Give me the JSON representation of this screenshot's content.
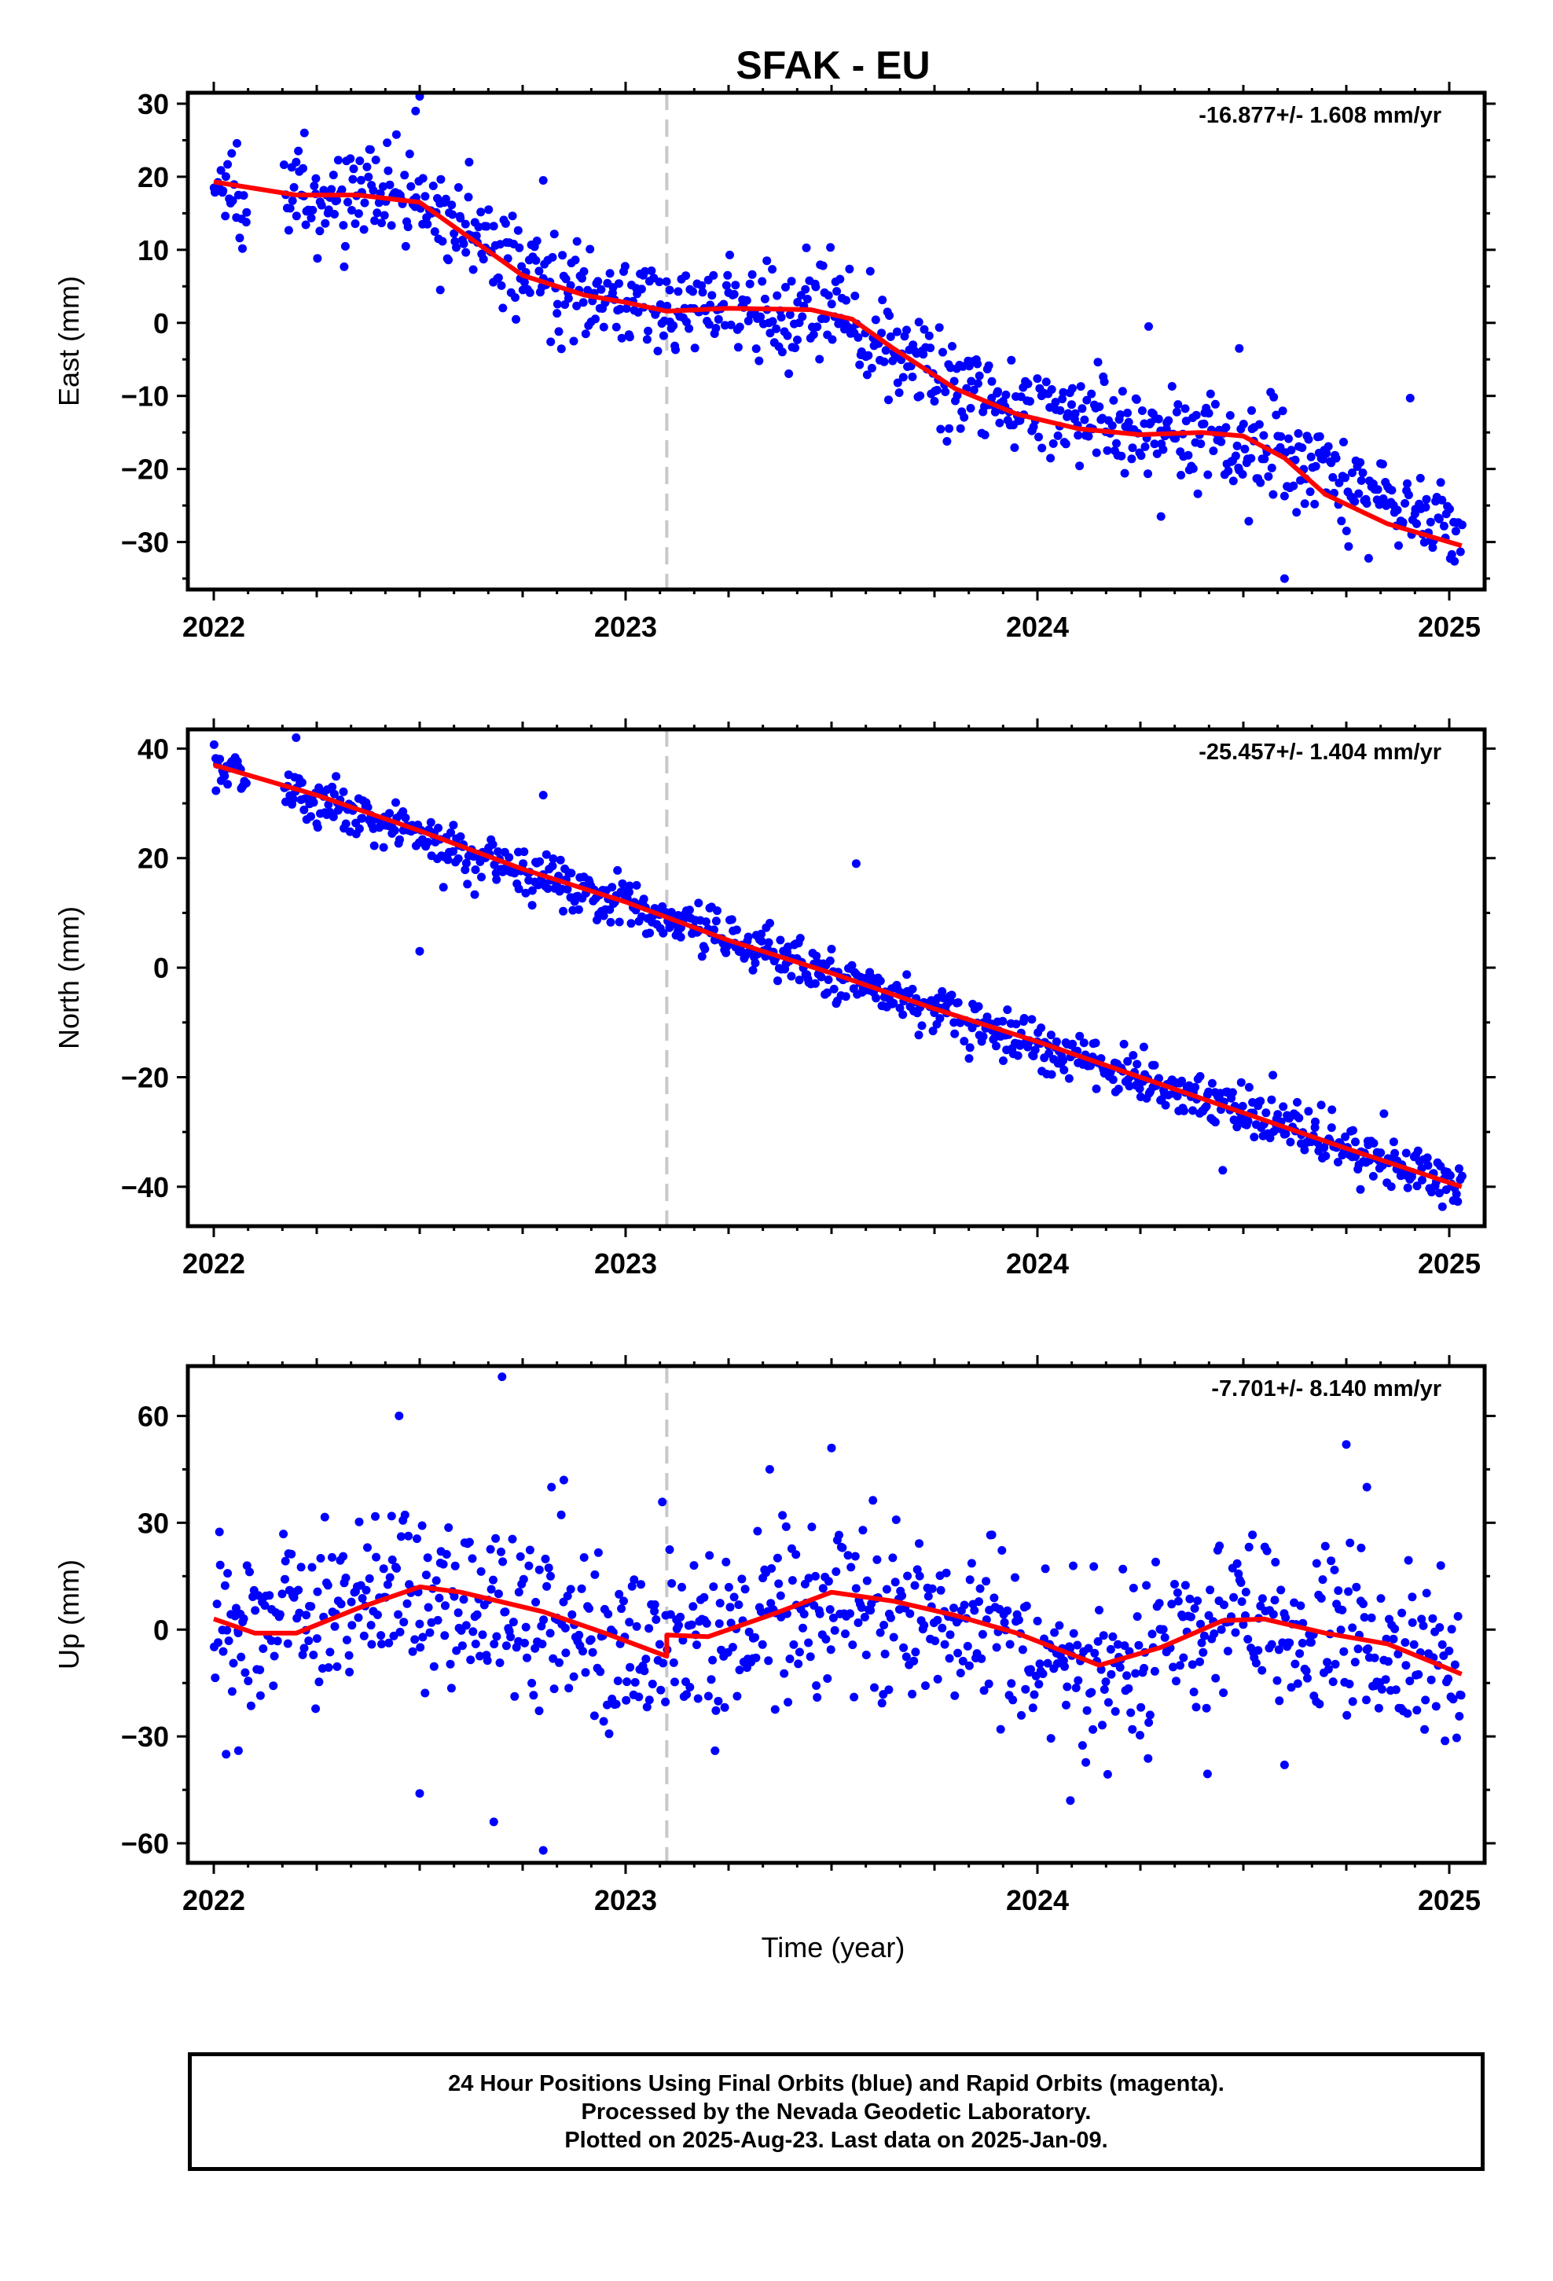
{
  "title": "SFAK - EU",
  "xlabel": "Time (year)",
  "caption": [
    "24 Hour Positions Using Final Orbits (blue) and Rapid Orbits (magenta).",
    "Processed by the Nevada Geodetic Laboratory.",
    "Plotted on 2025-Aug-23. Last data on 2025-Jan-09."
  ],
  "colors": {
    "data": "#0000ff",
    "model": "#ff0000",
    "break": "#c8c8c8"
  },
  "chart_data": [
    {
      "type": "scatter",
      "ylabel": "East (mm)",
      "rate": "-16.877+/- 1.608 mm/yr",
      "xlim": [
        1970,
        2085
      ],
      "ylim": [
        -36.5,
        31.5
      ],
      "xticks": [
        2022,
        2023,
        2024,
        2025
      ],
      "yticks": [
        30,
        20,
        10,
        0,
        -10,
        -20,
        -30
      ],
      "ytick_labels": [
        "30",
        "20",
        "10",
        "0",
        "−10",
        "−20",
        "−30"
      ],
      "break": 2023.1,
      "model": [
        [
          2022.0,
          19.3
        ],
        [
          2022.2,
          17.5
        ],
        [
          2022.35,
          17.5
        ],
        [
          2022.5,
          16.5
        ],
        [
          2022.6,
          12.5
        ],
        [
          2022.75,
          6.5
        ],
        [
          2022.9,
          3.8
        ],
        [
          2023.0,
          2.8
        ],
        [
          2023.1,
          1.6
        ],
        [
          2023.25,
          2.0
        ],
        [
          2023.45,
          1.8
        ],
        [
          2023.55,
          0.5
        ],
        [
          2023.65,
          -3.5
        ],
        [
          2023.8,
          -9.0
        ],
        [
          2023.95,
          -12.5
        ],
        [
          2024.1,
          -14.5
        ],
        [
          2024.25,
          -15.3
        ],
        [
          2024.4,
          -15.0
        ],
        [
          2024.5,
          -15.5
        ],
        [
          2024.6,
          -18.5
        ],
        [
          2024.7,
          -23.5
        ],
        [
          2024.85,
          -27.5
        ],
        [
          2025.03,
          -30.5
        ]
      ],
      "trend": [
        [
          2022.0,
          18.5
        ],
        [
          2022.5,
          16.5
        ],
        [
          2022.75,
          6.5
        ],
        [
          2023.1,
          1.8
        ],
        [
          2023.5,
          1.5
        ],
        [
          2023.8,
          -9.0
        ],
        [
          2024.3,
          -15.3
        ],
        [
          2024.6,
          -17.0
        ],
        [
          2025.03,
          -29.0
        ]
      ],
      "scatter_sd": 3.2,
      "outliers": [
        [
          2022.5,
          31.0
        ],
        [
          2022.49,
          29.0
        ],
        [
          2022.22,
          26.0
        ],
        [
          2022.62,
          22.0
        ],
        [
          2022.8,
          19.5
        ],
        [
          2024.27,
          -0.5
        ],
        [
          2024.49,
          -3.5
        ],
        [
          2024.52,
          -12.0
        ],
        [
          2024.6,
          -35.0
        ],
        [
          2024.3,
          -26.5
        ],
        [
          2022.55,
          4.5
        ]
      ]
    },
    {
      "type": "scatter",
      "ylabel": "North (mm)",
      "rate": "-25.457+/- 1.404 mm/yr",
      "xlim": [
        1970,
        2085
      ],
      "ylim": [
        -47.2,
        43.5
      ],
      "xticks": [
        2022,
        2023,
        2024,
        2025
      ],
      "yticks": [
        40,
        20,
        0,
        -20,
        -40
      ],
      "ytick_labels": [
        "40",
        "20",
        "0",
        "−20",
        "−40"
      ],
      "break": 2023.1,
      "model": [
        [
          2022.0,
          37.0
        ],
        [
          2022.25,
          31.5
        ],
        [
          2022.5,
          25.0
        ],
        [
          2022.75,
          18.0
        ],
        [
          2023.0,
          12.0
        ],
        [
          2023.25,
          5.0
        ],
        [
          2023.5,
          -1.0
        ],
        [
          2023.75,
          -7.5
        ],
        [
          2024.0,
          -13.5
        ],
        [
          2024.25,
          -20.0
        ],
        [
          2024.5,
          -26.5
        ],
        [
          2024.75,
          -33.0
        ],
        [
          2025.03,
          -40.0
        ]
      ],
      "trend": [
        [
          2022.0,
          37.0
        ],
        [
          2025.03,
          -40.0
        ]
      ],
      "scatter_sd": 2.3,
      "outliers": [
        [
          2022.5,
          3.0
        ],
        [
          2023.56,
          19.0
        ],
        [
          2022.2,
          42.0
        ],
        [
          2022.8,
          31.5
        ],
        [
          2024.45,
          -37.0
        ]
      ]
    },
    {
      "type": "scatter",
      "ylabel": "Up (mm)",
      "rate": "-7.701+/- 8.140 mm/yr",
      "xlim": [
        1970,
        2085
      ],
      "ylim": [
        -65.5,
        74.0
      ],
      "xticks": [
        2022,
        2023,
        2024,
        2025
      ],
      "yticks": [
        60,
        30,
        0,
        -30,
        -60
      ],
      "ytick_labels": [
        "60",
        "30",
        "0",
        "−30",
        "−60"
      ],
      "break": 2023.1,
      "model": [
        [
          2022.0,
          3.0
        ],
        [
          2022.1,
          -1.0
        ],
        [
          2022.2,
          -1.0
        ],
        [
          2022.35,
          6.0
        ],
        [
          2022.5,
          12.0
        ],
        [
          2022.6,
          10.5
        ],
        [
          2022.8,
          5.0
        ],
        [
          2022.95,
          -1.0
        ],
        [
          2023.1,
          -7.5
        ],
        [
          2023.1,
          -1.5
        ],
        [
          2023.2,
          -2.0
        ],
        [
          2023.35,
          4.0
        ],
        [
          2023.5,
          10.5
        ],
        [
          2023.65,
          8.0
        ],
        [
          2023.8,
          4.0
        ],
        [
          2023.95,
          -1.0
        ],
        [
          2024.15,
          -10.0
        ],
        [
          2024.3,
          -5.0
        ],
        [
          2024.45,
          2.5
        ],
        [
          2024.55,
          3.0
        ],
        [
          2024.7,
          -1.0
        ],
        [
          2024.85,
          -4.0
        ],
        [
          2025.03,
          -12.5
        ]
      ],
      "trend": [
        [
          2022.0,
          2.0
        ],
        [
          2022.5,
          10.0
        ],
        [
          2023.1,
          -6.0
        ],
        [
          2023.5,
          9.0
        ],
        [
          2024.15,
          -10.0
        ],
        [
          2024.5,
          3.0
        ],
        [
          2025.03,
          -10.0
        ]
      ],
      "scatter_sd": 12.0,
      "outliers": [
        [
          2022.7,
          71.0
        ],
        [
          2022.45,
          60.0
        ],
        [
          2022.8,
          -62.0
        ],
        [
          2022.68,
          -54.0
        ],
        [
          2022.5,
          -46.0
        ],
        [
          2024.08,
          -48.0
        ],
        [
          2023.5,
          51.0
        ],
        [
          2024.75,
          52.0
        ],
        [
          2024.8,
          40.0
        ],
        [
          2023.35,
          45.0
        ],
        [
          2022.82,
          40.0
        ],
        [
          2022.85,
          42.0
        ],
        [
          2022.03,
          -35.0
        ],
        [
          2022.06,
          -34.0
        ],
        [
          2024.6,
          -38.0
        ]
      ]
    }
  ]
}
